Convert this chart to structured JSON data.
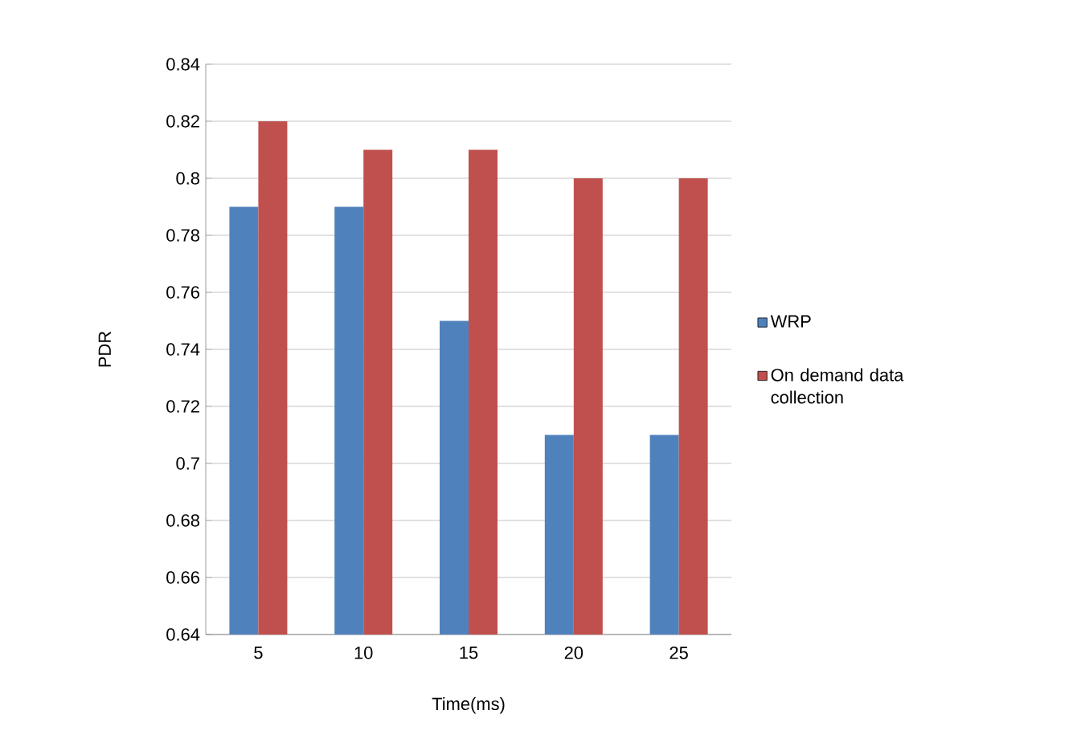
{
  "chart_data": {
    "type": "bar",
    "xlabel": "Time(ms)",
    "ylabel": "PDR",
    "categories": [
      "5",
      "10",
      "15",
      "20",
      "25"
    ],
    "series": [
      {
        "name": "WRP",
        "color": "#4f81bd",
        "values": [
          0.79,
          0.79,
          0.75,
          0.71,
          0.71
        ]
      },
      {
        "name": "On demand data collection",
        "color": "#c0504d",
        "values": [
          0.82,
          0.81,
          0.81,
          0.8,
          0.8
        ]
      }
    ],
    "ylim": [
      0.64,
      0.84
    ],
    "yticks": [
      0.64,
      0.66,
      0.68,
      0.7,
      0.72,
      0.74,
      0.76,
      0.78,
      0.8,
      0.82,
      0.84
    ],
    "grid": "y",
    "legend": "right"
  }
}
